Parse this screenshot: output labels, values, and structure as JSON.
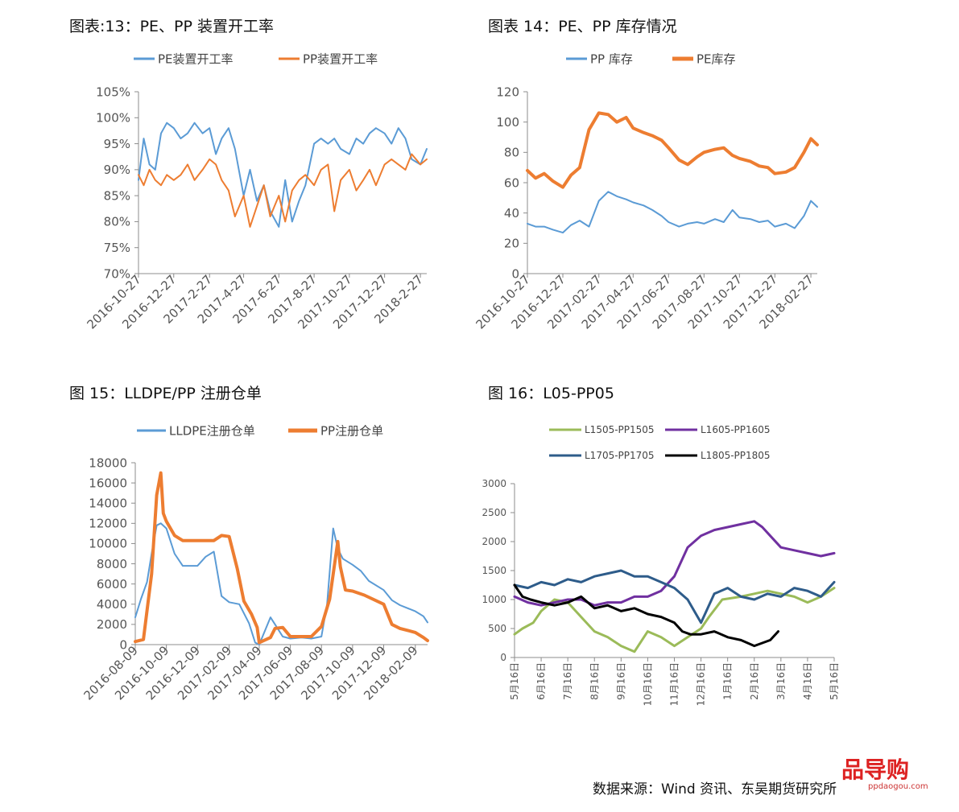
{
  "figures": [
    {
      "title": "图表:13：PE、PP 装置开工率"
    },
    {
      "title": "图表 14：PE、PP 库存情况"
    },
    {
      "title": "图 15：LLDPE/PP 注册仓单"
    },
    {
      "title": "图 16：L05-PP05"
    }
  ],
  "source_text": "数据来源：Wind 资讯、东吴期货研究所",
  "watermark": {
    "logo": "品导购",
    "url": "ppdaogou.com"
  },
  "chart_data": [
    {
      "type": "line",
      "title": "",
      "xlabel": "",
      "ylabel": "",
      "ylim": [
        70,
        105
      ],
      "y_ticks": [
        "105%",
        "100%",
        "95%",
        "90%",
        "85%",
        "80%",
        "75%",
        "70%"
      ],
      "y_tick_values": [
        105,
        100,
        95,
        90,
        85,
        80,
        75,
        70
      ],
      "x_ticks": [
        "2016-10-27",
        "2016-12-27",
        "2017-2-27",
        "2017-4-27",
        "2017-6-27",
        "2017-8-27",
        "2017-10-27",
        "2017-12-27",
        "2018-2-27"
      ],
      "grid": false,
      "legend": "top",
      "series": [
        {
          "name": "PE装置开工率",
          "color": "#5B9BD5",
          "width": 2,
          "x": [
            "2016-10-27",
            "2016-11-05",
            "2016-11-15",
            "2016-11-25",
            "2016-12-05",
            "2016-12-15",
            "2016-12-27",
            "2017-01-08",
            "2017-01-20",
            "2017-02-01",
            "2017-02-15",
            "2017-02-27",
            "2017-03-10",
            "2017-03-20",
            "2017-04-01",
            "2017-04-12",
            "2017-04-27",
            "2017-05-08",
            "2017-05-20",
            "2017-06-01",
            "2017-06-12",
            "2017-06-27",
            "2017-07-08",
            "2017-07-20",
            "2017-08-01",
            "2017-08-12",
            "2017-08-27",
            "2017-09-08",
            "2017-09-20",
            "2017-10-01",
            "2017-10-12",
            "2017-10-27",
            "2017-11-08",
            "2017-11-20",
            "2017-12-01",
            "2017-12-12",
            "2017-12-27",
            "2018-01-08",
            "2018-01-20",
            "2018-02-01",
            "2018-02-12",
            "2018-02-27",
            "2018-03-10"
          ],
          "values": [
            88,
            96,
            91,
            90,
            97,
            99,
            98,
            96,
            97,
            99,
            97,
            98,
            93,
            96,
            98,
            94,
            85,
            90,
            84,
            87,
            82,
            79,
            88,
            80,
            84,
            87,
            95,
            96,
            95,
            96,
            94,
            93,
            96,
            95,
            97,
            98,
            97,
            95,
            98,
            96,
            92,
            91,
            94
          ]
        },
        {
          "name": "PP装置开工率",
          "color": "#ED7D31",
          "width": 2,
          "x": [
            "2016-10-27",
            "2016-11-05",
            "2016-11-15",
            "2016-11-25",
            "2016-12-05",
            "2016-12-15",
            "2016-12-27",
            "2017-01-08",
            "2017-01-20",
            "2017-02-01",
            "2017-02-15",
            "2017-02-27",
            "2017-03-10",
            "2017-03-20",
            "2017-04-01",
            "2017-04-12",
            "2017-04-27",
            "2017-05-08",
            "2017-05-20",
            "2017-06-01",
            "2017-06-12",
            "2017-06-27",
            "2017-07-08",
            "2017-07-20",
            "2017-08-01",
            "2017-08-12",
            "2017-08-27",
            "2017-09-08",
            "2017-09-20",
            "2017-10-01",
            "2017-10-12",
            "2017-10-27",
            "2017-11-08",
            "2017-11-20",
            "2017-12-01",
            "2017-12-12",
            "2017-12-27",
            "2018-01-08",
            "2018-01-20",
            "2018-02-01",
            "2018-02-12",
            "2018-02-27",
            "2018-03-10"
          ],
          "values": [
            89,
            87,
            90,
            88,
            87,
            89,
            88,
            89,
            91,
            88,
            90,
            92,
            91,
            88,
            86,
            81,
            85,
            79,
            83,
            87,
            81,
            85,
            80,
            86,
            88,
            89,
            87,
            90,
            91,
            82,
            88,
            90,
            86,
            88,
            90,
            87,
            91,
            92,
            91,
            90,
            93,
            91,
            92
          ]
        }
      ]
    },
    {
      "type": "line",
      "title": "",
      "xlabel": "",
      "ylabel": "",
      "ylim": [
        0,
        120
      ],
      "y_ticks": [
        "120",
        "100",
        "80",
        "60",
        "40",
        "20",
        "0"
      ],
      "y_tick_values": [
        120,
        100,
        80,
        60,
        40,
        20,
        0
      ],
      "x_ticks": [
        "2016-10-27",
        "2016-12-27",
        "2017-02-27",
        "2017-04-27",
        "2017-06-27",
        "2017-08-27",
        "2017-10-27",
        "2017-12-27",
        "2018-02-27"
      ],
      "grid": false,
      "legend": "top",
      "series": [
        {
          "name": "PP 库存",
          "color": "#5B9BD5",
          "width": 2,
          "x": [
            "2016-10-27",
            "2016-11-10",
            "2016-11-25",
            "2016-12-10",
            "2016-12-27",
            "2017-01-10",
            "2017-01-25",
            "2017-02-10",
            "2017-02-27",
            "2017-03-15",
            "2017-03-30",
            "2017-04-15",
            "2017-04-27",
            "2017-05-15",
            "2017-05-30",
            "2017-06-15",
            "2017-06-27",
            "2017-07-15",
            "2017-07-30",
            "2017-08-15",
            "2017-08-27",
            "2017-09-15",
            "2017-09-30",
            "2017-10-15",
            "2017-10-27",
            "2017-11-15",
            "2017-11-30",
            "2017-12-15",
            "2017-12-27",
            "2018-01-15",
            "2018-01-30",
            "2018-02-15",
            "2018-02-27",
            "2018-03-10"
          ],
          "values": [
            33,
            31,
            31,
            29,
            27,
            32,
            35,
            31,
            48,
            54,
            51,
            49,
            47,
            45,
            42,
            38,
            34,
            31,
            33,
            34,
            33,
            36,
            34,
            42,
            37,
            36,
            34,
            35,
            31,
            33,
            30,
            38,
            48,
            44
          ]
        },
        {
          "name": "PE库存",
          "color": "#ED7D31",
          "width": 4,
          "x": [
            "2016-10-27",
            "2016-11-10",
            "2016-11-25",
            "2016-12-10",
            "2016-12-27",
            "2017-01-10",
            "2017-01-25",
            "2017-02-10",
            "2017-02-27",
            "2017-03-15",
            "2017-03-30",
            "2017-04-15",
            "2017-04-27",
            "2017-05-15",
            "2017-05-30",
            "2017-06-15",
            "2017-06-27",
            "2017-07-15",
            "2017-07-30",
            "2017-08-15",
            "2017-08-27",
            "2017-09-15",
            "2017-09-30",
            "2017-10-15",
            "2017-10-27",
            "2017-11-15",
            "2017-11-30",
            "2017-12-15",
            "2017-12-27",
            "2018-01-15",
            "2018-01-30",
            "2018-02-15",
            "2018-02-27",
            "2018-03-10"
          ],
          "values": [
            68,
            63,
            66,
            61,
            57,
            65,
            70,
            95,
            106,
            105,
            100,
            103,
            96,
            93,
            91,
            88,
            83,
            75,
            72,
            77,
            80,
            82,
            83,
            78,
            76,
            74,
            71,
            70,
            66,
            67,
            70,
            80,
            89,
            85
          ]
        }
      ]
    },
    {
      "type": "line",
      "title": "",
      "xlabel": "",
      "ylabel": "",
      "ylim": [
        0,
        18000
      ],
      "y_ticks": [
        "18000",
        "16000",
        "14000",
        "12000",
        "10000",
        "8000",
        "6000",
        "4000",
        "2000",
        "0"
      ],
      "y_tick_values": [
        18000,
        16000,
        14000,
        12000,
        10000,
        8000,
        6000,
        4000,
        2000,
        0
      ],
      "x_ticks": [
        "2016-08-09",
        "2016-10-09",
        "2016-12-09",
        "2017-02-09",
        "2017-04-09",
        "2017-06-09",
        "2017-08-09",
        "2017-10-09",
        "2017-12-09",
        "2018-02-09"
      ],
      "grid": false,
      "legend": "top",
      "series": [
        {
          "name": "LLDPE注册仓单",
          "color": "#5B9BD5",
          "width": 2,
          "x": [
            "2016-08-09",
            "2016-08-20",
            "2016-09-01",
            "2016-09-10",
            "2016-09-20",
            "2016-09-28",
            "2016-10-09",
            "2016-10-25",
            "2016-11-10",
            "2016-12-09",
            "2016-12-25",
            "2017-01-10",
            "2017-01-25",
            "2017-02-09",
            "2017-03-01",
            "2017-03-20",
            "2017-04-01",
            "2017-04-09",
            "2017-05-01",
            "2017-05-10",
            "2017-05-25",
            "2017-06-09",
            "2017-07-01",
            "2017-07-20",
            "2017-08-09",
            "2017-08-20",
            "2017-09-01",
            "2017-09-10",
            "2017-09-20",
            "2017-10-09",
            "2017-10-25",
            "2017-11-10",
            "2017-12-09",
            "2017-12-25",
            "2018-01-10",
            "2018-02-09",
            "2018-02-25",
            "2018-03-05"
          ],
          "values": [
            2700,
            4500,
            6200,
            9000,
            11800,
            12000,
            11500,
            9000,
            7800,
            7800,
            8700,
            9200,
            4800,
            4200,
            4000,
            2100,
            200,
            0,
            2700,
            2000,
            800,
            600,
            700,
            600,
            800,
            4000,
            11500,
            9500,
            8500,
            7900,
            7300,
            6300,
            5400,
            4400,
            3900,
            3300,
            2800,
            2200
          ]
        },
        {
          "name": "PP注册仓单",
          "color": "#ED7D31",
          "width": 4,
          "x": [
            "2016-08-09",
            "2016-08-25",
            "2016-09-10",
            "2016-09-20",
            "2016-09-28",
            "2016-10-03",
            "2016-10-09",
            "2016-10-25",
            "2016-11-10",
            "2016-12-09",
            "2016-12-25",
            "2017-01-10",
            "2017-01-25",
            "2017-02-09",
            "2017-02-25",
            "2017-03-10",
            "2017-03-25",
            "2017-04-05",
            "2017-04-09",
            "2017-05-01",
            "2017-05-10",
            "2017-05-25",
            "2017-06-09",
            "2017-07-01",
            "2017-07-20",
            "2017-08-09",
            "2017-08-25",
            "2017-09-10",
            "2017-09-15",
            "2017-09-25",
            "2017-10-09",
            "2017-11-01",
            "2017-12-09",
            "2017-12-25",
            "2018-01-10",
            "2018-02-09",
            "2018-02-25",
            "2018-03-05"
          ],
          "values": [
            300,
            500,
            7000,
            14800,
            17000,
            13000,
            12200,
            10800,
            10300,
            10300,
            10300,
            10300,
            10800,
            10700,
            7500,
            4300,
            3000,
            1700,
            200,
            700,
            1600,
            1700,
            800,
            800,
            800,
            1800,
            4500,
            10200,
            7700,
            5400,
            5300,
            4900,
            4000,
            2000,
            1600,
            1200,
            700,
            400
          ]
        }
      ]
    },
    {
      "type": "line",
      "title": "",
      "xlabel": "",
      "ylabel": "",
      "ylim": [
        0,
        3000
      ],
      "y_ticks": [
        "3000",
        "2500",
        "2000",
        "1500",
        "1000",
        "500",
        "0"
      ],
      "y_tick_values": [
        3000,
        2500,
        2000,
        1500,
        1000,
        500,
        0
      ],
      "x_ticks": [
        "5月16日",
        "6月16日",
        "7月16日",
        "8月16日",
        "9月16日",
        "10月16日",
        "11月16日",
        "12月16日",
        "1月16日",
        "2月16日",
        "3月16日",
        "4月16日",
        "5月16日"
      ],
      "grid": false,
      "legend": "top",
      "series": [
        {
          "name": "L1505-PP1505",
          "color": "#9BBB59",
          "width": 3,
          "x": [
            0,
            0.3,
            0.7,
            1.0,
            1.5,
            2.0,
            2.5,
            3.0,
            3.5,
            4.0,
            4.5,
            5.0,
            5.5,
            6.0,
            6.5,
            7.0,
            7.3,
            7.8,
            8.5,
            9.0,
            9.5,
            10.0,
            10.5,
            11.0,
            11.5,
            12.0
          ],
          "values": [
            400,
            500,
            600,
            800,
            1000,
            950,
            700,
            450,
            350,
            200,
            100,
            450,
            350,
            200,
            350,
            500,
            700,
            1000,
            1050,
            1100,
            1150,
            1100,
            1050,
            950,
            1050,
            1200
          ]
        },
        {
          "name": "L1605-PP1605",
          "color": "#7030A0",
          "width": 3,
          "x": [
            0,
            0.5,
            1.0,
            1.5,
            2.0,
            2.5,
            3.0,
            3.5,
            4.0,
            4.5,
            5.0,
            5.5,
            6.0,
            6.5,
            7.0,
            7.5,
            8.0,
            8.5,
            9.0,
            9.3,
            9.6,
            10.0,
            10.5,
            11.0,
            11.5,
            12.0
          ],
          "values": [
            1050,
            950,
            900,
            950,
            1000,
            1000,
            900,
            950,
            950,
            1050,
            1050,
            1150,
            1400,
            1900,
            2100,
            2200,
            2250,
            2300,
            2350,
            2250,
            2100,
            1900,
            1850,
            1800,
            1750,
            1800
          ]
        },
        {
          "name": "L1705-PP1705",
          "color": "#2E5C8A",
          "width": 3,
          "x": [
            0,
            0.5,
            1.0,
            1.5,
            2.0,
            2.5,
            3.0,
            3.5,
            4.0,
            4.5,
            5.0,
            5.5,
            6.0,
            6.5,
            7.0,
            7.5,
            8.0,
            8.5,
            9.0,
            9.5,
            10.0,
            10.5,
            11.0,
            11.5,
            12.0
          ],
          "values": [
            1250,
            1200,
            1300,
            1250,
            1350,
            1300,
            1400,
            1450,
            1500,
            1400,
            1400,
            1300,
            1200,
            1000,
            600,
            1100,
            1200,
            1050,
            1000,
            1100,
            1050,
            1200,
            1150,
            1050,
            1300
          ]
        },
        {
          "name": "L1805-PP1805",
          "color": "#000000",
          "width": 3,
          "x": [
            0,
            0.3,
            0.6,
            1.0,
            1.5,
            2.0,
            2.5,
            3.0,
            3.5,
            4.0,
            4.5,
            5.0,
            5.5,
            6.0,
            6.3,
            6.6,
            7.0,
            7.5,
            8.0,
            8.5,
            9.0,
            9.3,
            9.6,
            9.9
          ],
          "values": [
            1250,
            1050,
            1000,
            950,
            900,
            950,
            1050,
            850,
            900,
            800,
            850,
            750,
            700,
            600,
            450,
            400,
            400,
            450,
            350,
            300,
            200,
            250,
            300,
            450
          ]
        }
      ]
    }
  ]
}
